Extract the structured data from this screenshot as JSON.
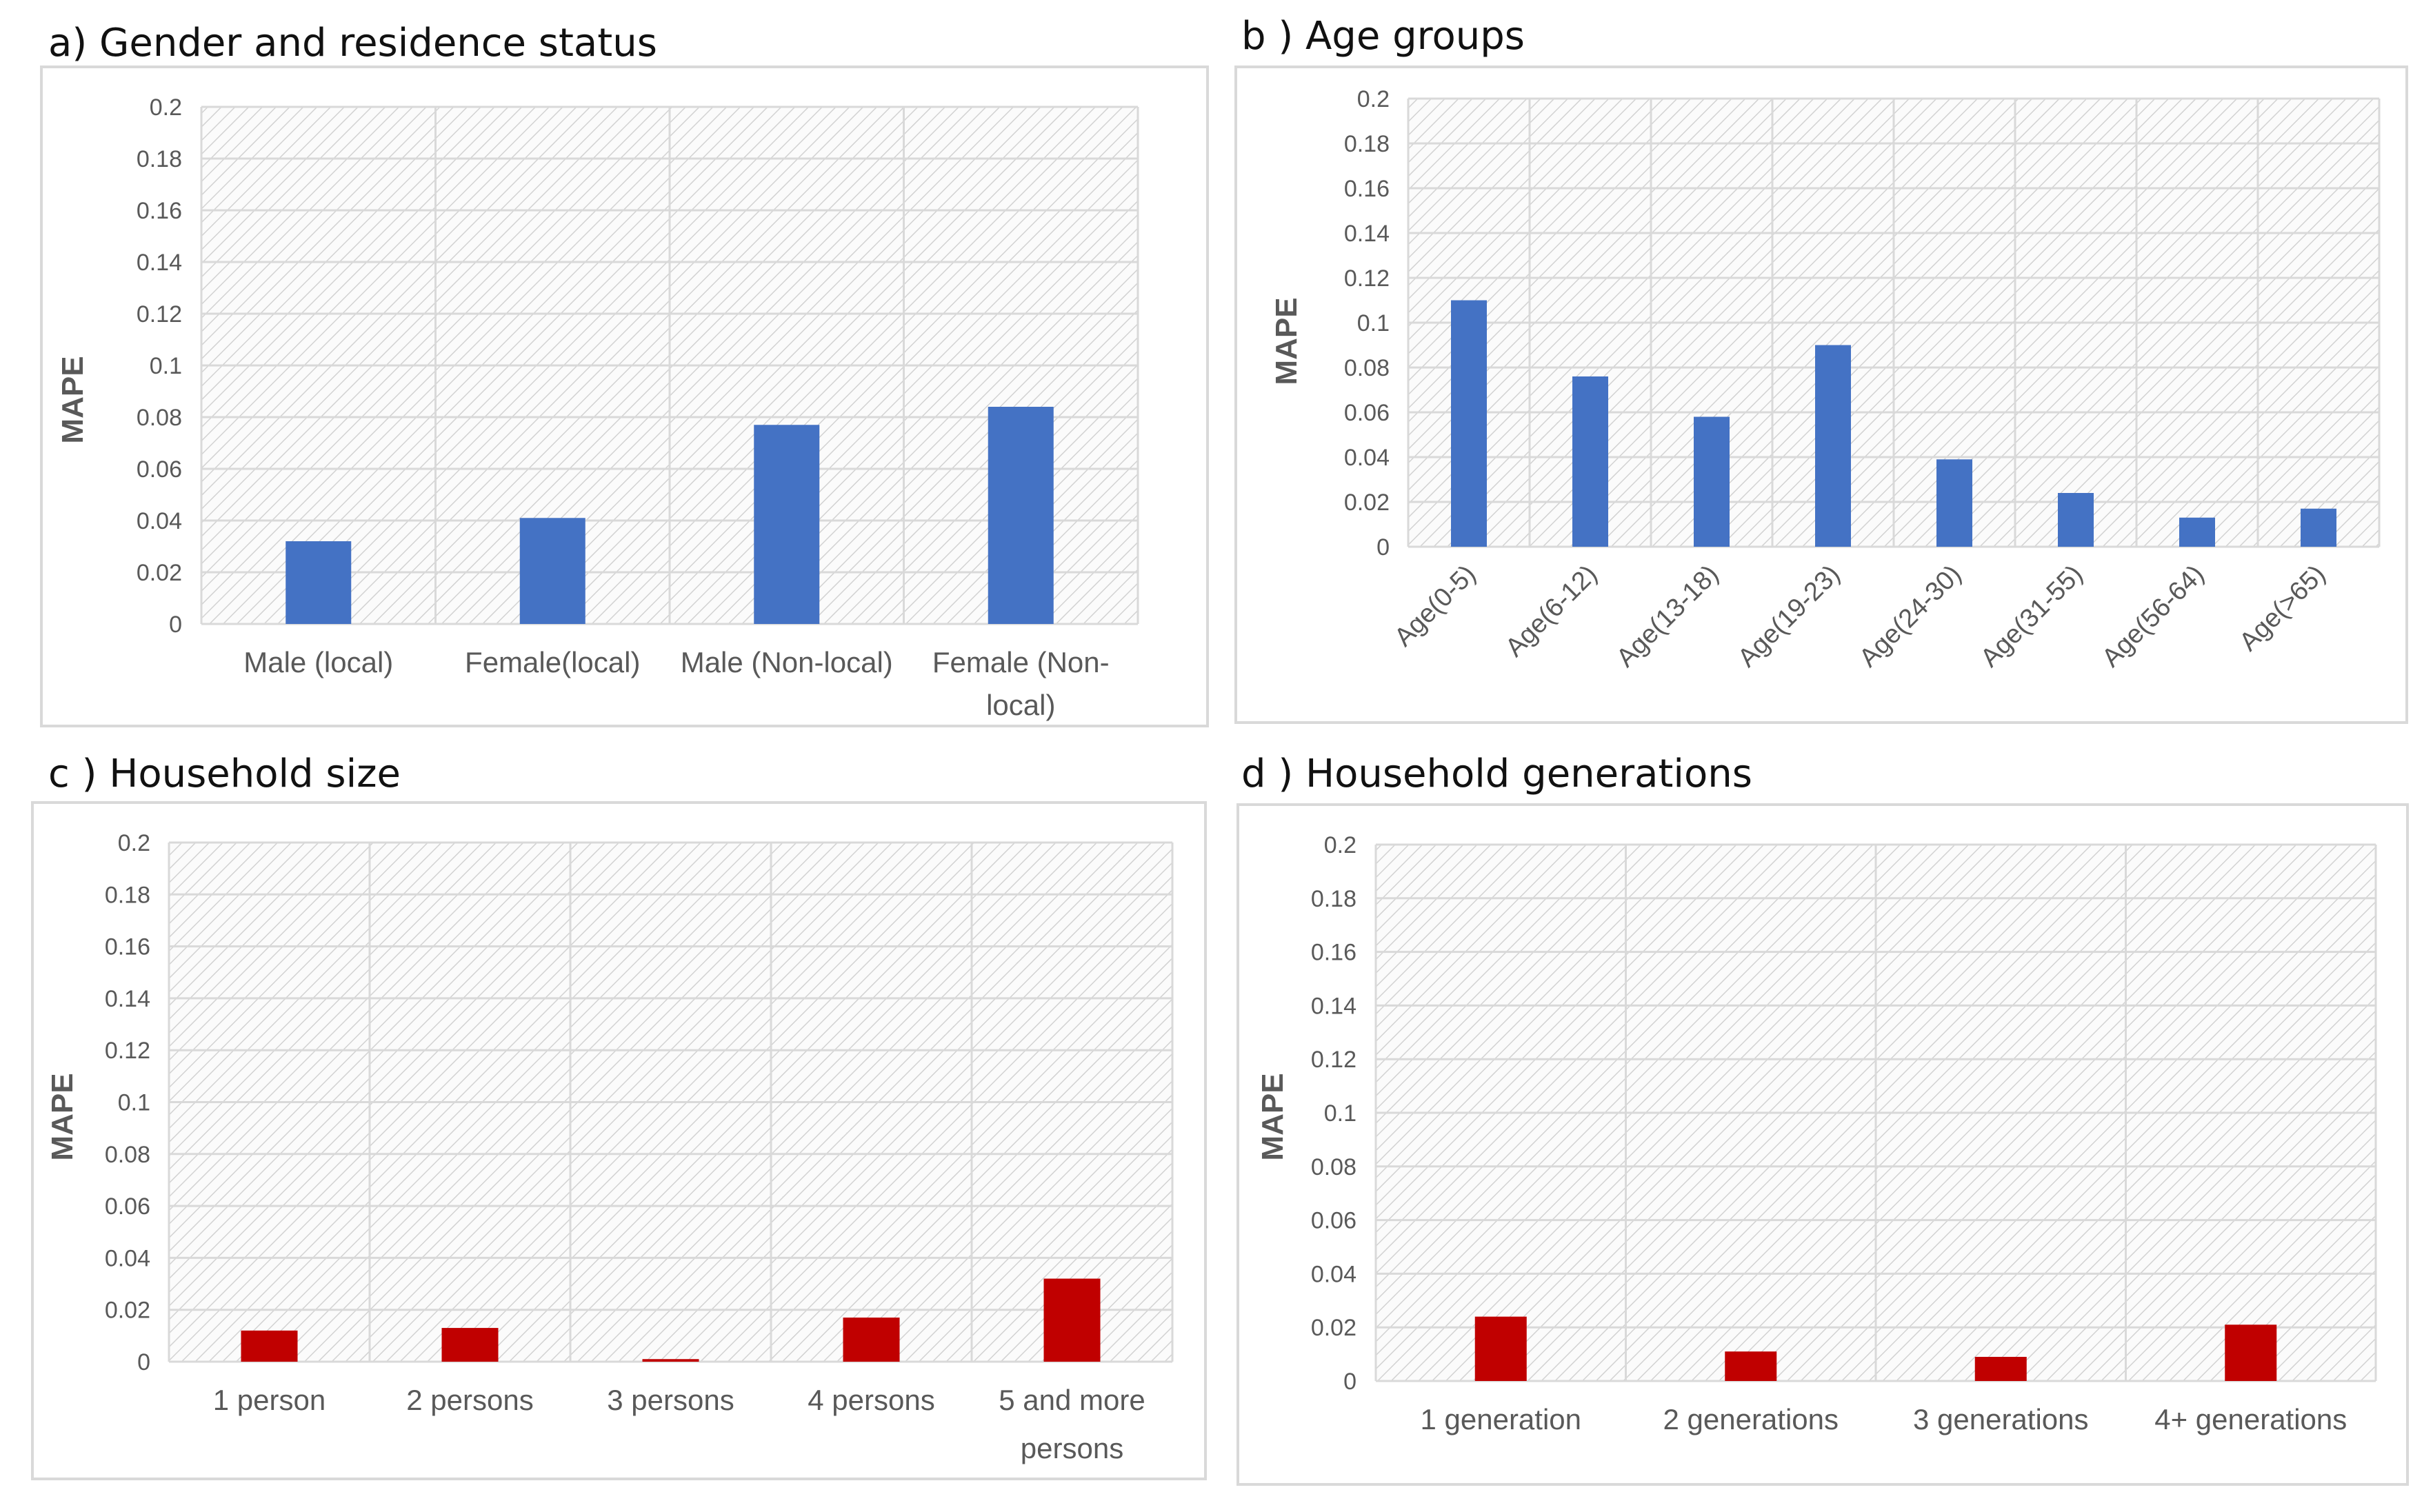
{
  "chart_data": [
    {
      "id": "a",
      "type": "bar",
      "title": "a)  Gender and residence status",
      "xlabel": "",
      "ylabel": "MAPE",
      "ylim": [
        0,
        0.2
      ],
      "yticks": [
        "0",
        "0.02",
        "0.04",
        "0.06",
        "0.08",
        "0.1",
        "0.12",
        "0.14",
        "0.16",
        "0.18",
        "0.2"
      ],
      "categories": [
        "Male (local)",
        "Female(local)",
        "Male (Non-local)",
        "Female (Non-local)"
      ],
      "category_lines": [
        [
          "Male (local)"
        ],
        [
          "Female(local)"
        ],
        [
          "Male (Non-local)"
        ],
        [
          "Female (Non-",
          "local)"
        ]
      ],
      "values": [
        0.032,
        0.041,
        0.077,
        0.084
      ],
      "color": "#4472c4",
      "grid": true
    },
    {
      "id": "b",
      "type": "bar",
      "title": "b ) Age groups",
      "xlabel": "",
      "ylabel": "MAPE",
      "ylim": [
        0,
        0.2
      ],
      "yticks": [
        "0",
        "0.02",
        "0.04",
        "0.06",
        "0.08",
        "0.1",
        "0.12",
        "0.14",
        "0.16",
        "0.18",
        "0.2"
      ],
      "categories": [
        "Age(0-5)",
        "Age(6-12)",
        "Age(13-18)",
        "Age(19-23)",
        "Age(24-30)",
        "Age(31-55)",
        "Age(56-64)",
        "Age(>65)"
      ],
      "values": [
        0.11,
        0.076,
        0.058,
        0.09,
        0.039,
        0.024,
        0.013,
        0.017
      ],
      "color": "#4472c4",
      "grid": true
    },
    {
      "id": "c",
      "type": "bar",
      "title": "c ) Household size",
      "xlabel": "",
      "ylabel": "MAPE",
      "ylim": [
        0,
        0.2
      ],
      "yticks": [
        "0",
        "0.02",
        "0.04",
        "0.06",
        "0.08",
        "0.1",
        "0.12",
        "0.14",
        "0.16",
        "0.18",
        "0.2"
      ],
      "categories": [
        "1 person",
        "2 persons",
        "3 persons",
        "4 persons",
        "5 and more persons"
      ],
      "category_lines": [
        [
          "1 person"
        ],
        [
          "2 persons"
        ],
        [
          "3 persons"
        ],
        [
          "4 persons"
        ],
        [
          "5 and more",
          "persons"
        ]
      ],
      "values": [
        0.012,
        0.013,
        0.001,
        0.017,
        0.032
      ],
      "color": "#c00000",
      "grid": true
    },
    {
      "id": "d",
      "type": "bar",
      "title": "d ) Household generations",
      "xlabel": "",
      "ylabel": "MAPE",
      "ylim": [
        0,
        0.2
      ],
      "yticks": [
        "0",
        "0.02",
        "0.04",
        "0.06",
        "0.08",
        "0.1",
        "0.12",
        "0.14",
        "0.16",
        "0.18",
        "0.2"
      ],
      "categories": [
        "1 generation",
        "2 generations",
        "3 generations",
        "4+ generations"
      ],
      "values": [
        0.024,
        0.011,
        0.009,
        0.021
      ],
      "color": "#c00000",
      "grid": true
    }
  ]
}
